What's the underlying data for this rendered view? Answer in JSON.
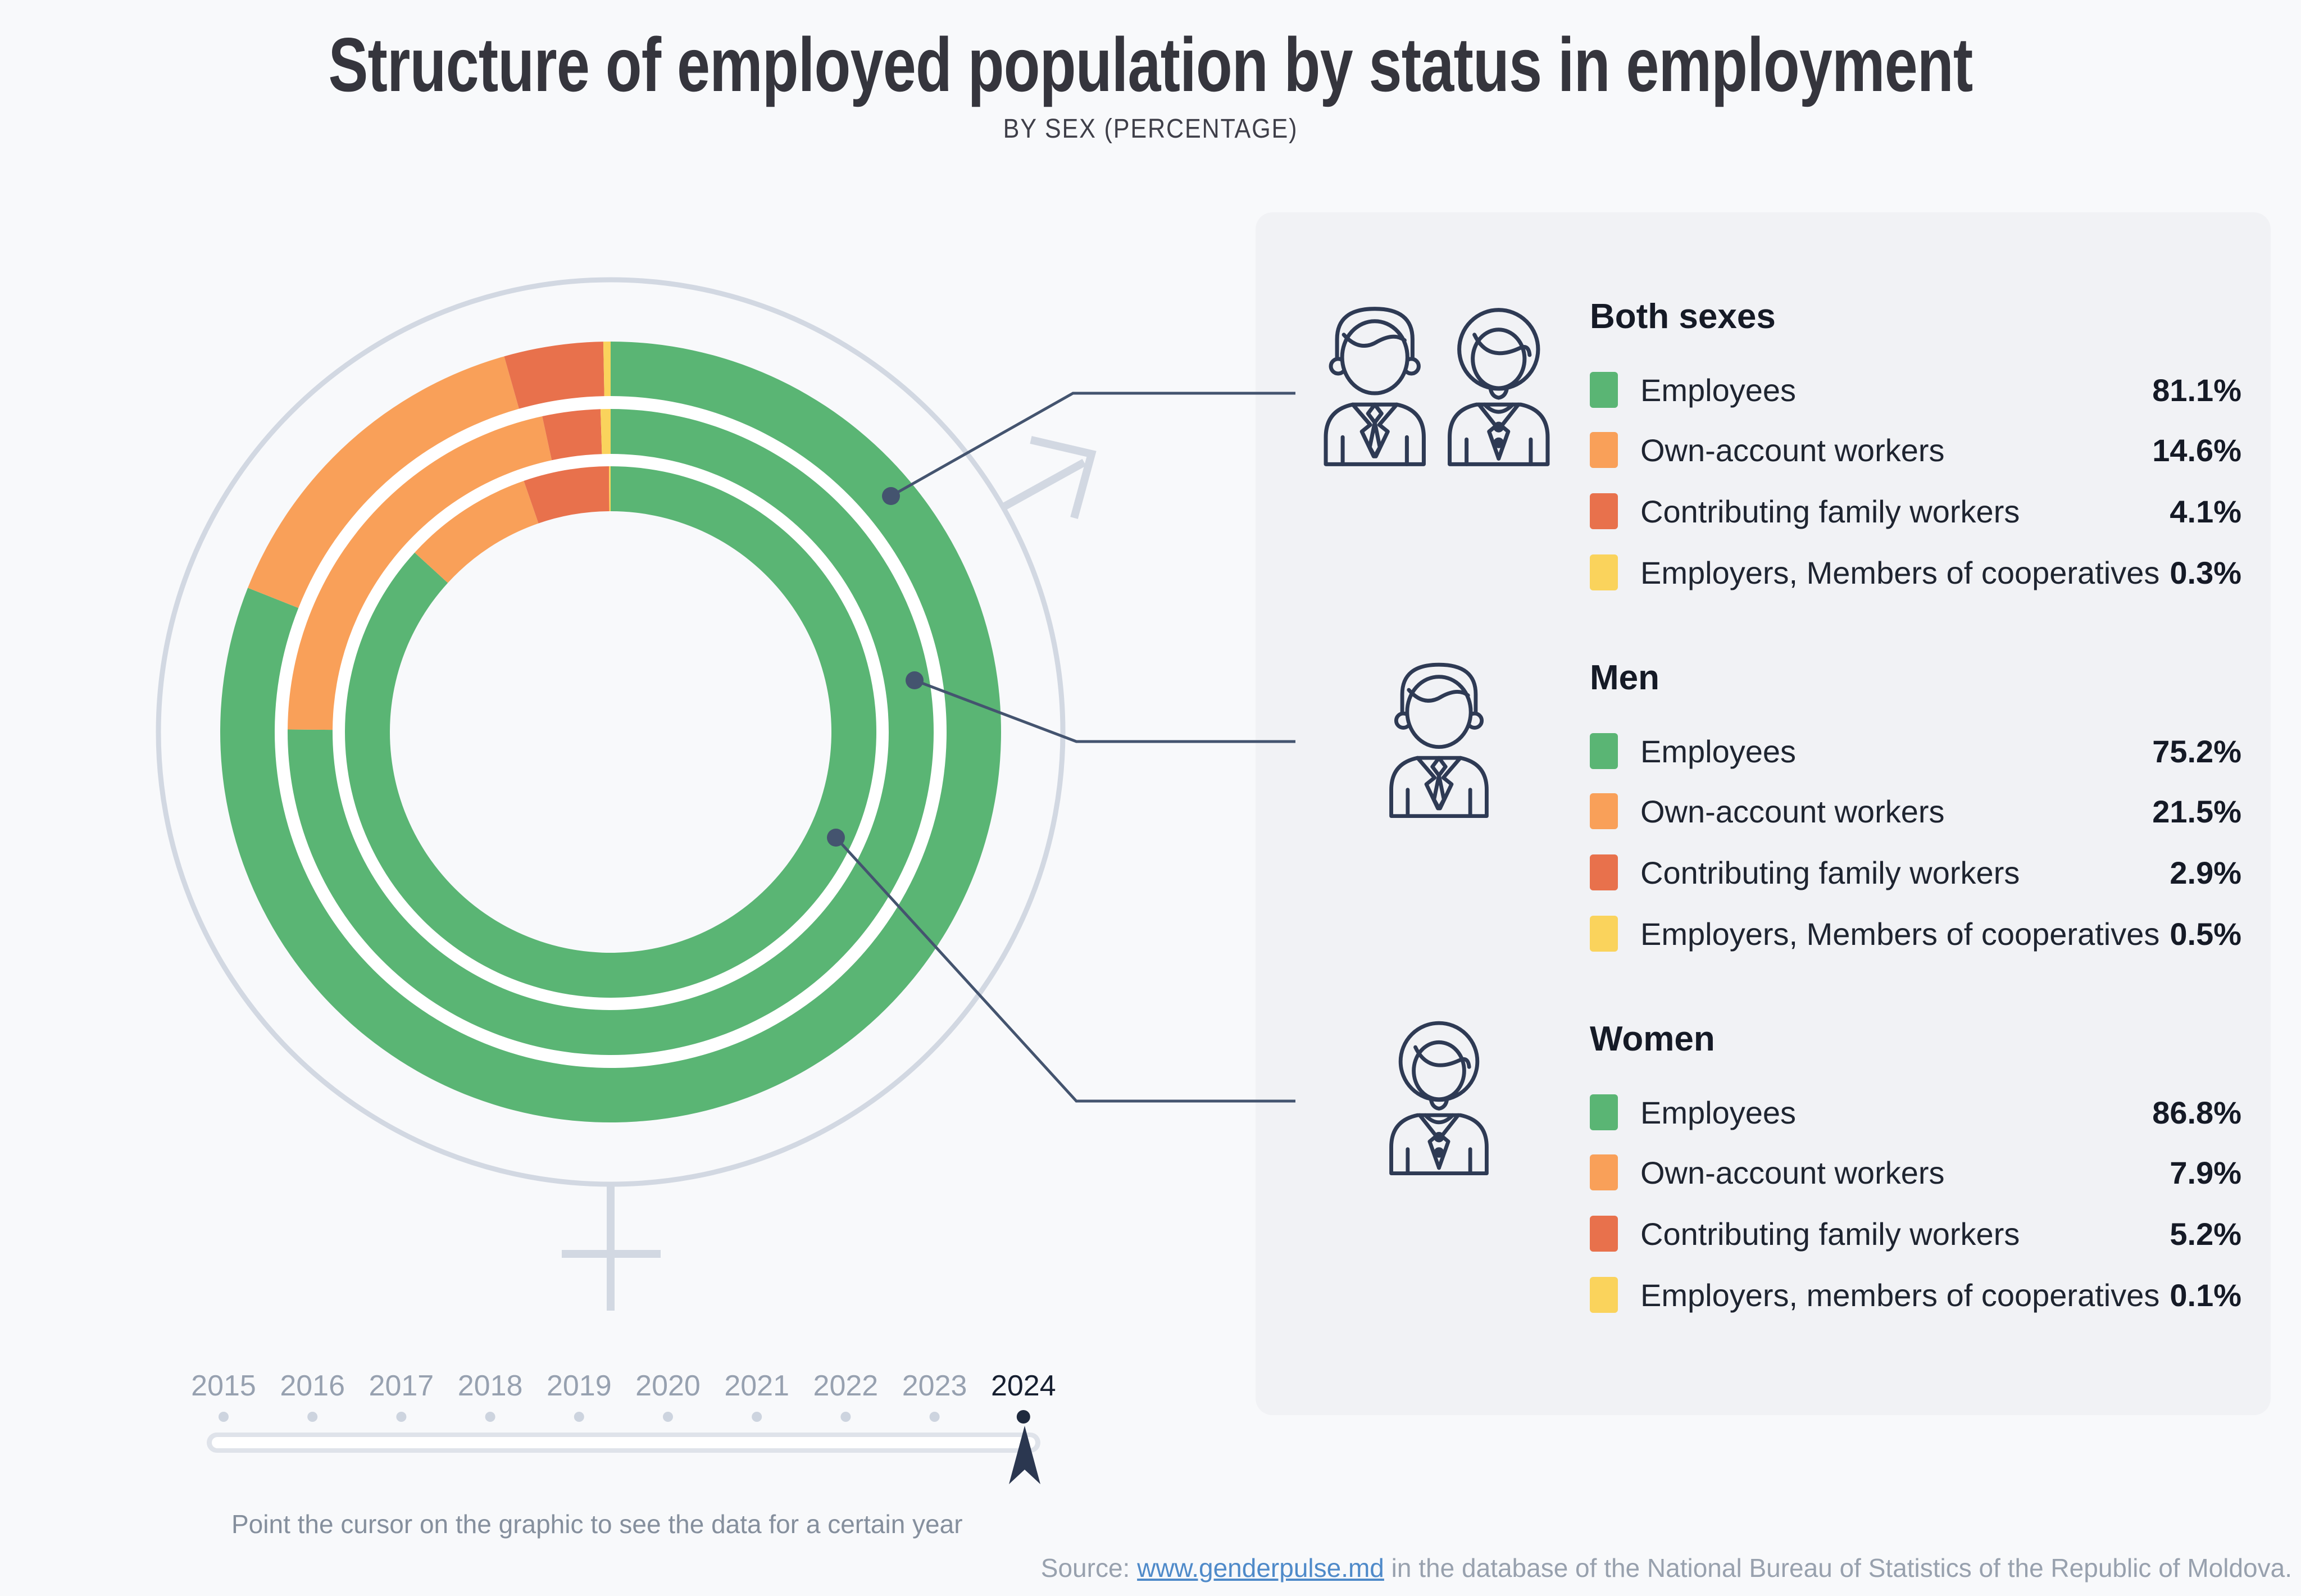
{
  "title": "Structure of employed population by status in employment",
  "subtitle": "BY SEX (PERCENTAGE)",
  "colors": {
    "employees": "#5ab574",
    "own_account": "#f9a059",
    "family_workers": "#e8714c",
    "employers": "#fad35c",
    "navy": "#2e3a54",
    "callout": "#44546f",
    "decorative": "#d2d8e2",
    "panel": "#f1f2f5"
  },
  "chart_data": {
    "type": "donut-multi-ring",
    "title": "Structure of employed population by status in employment",
    "subtitle": "BY SEX (PERCENTAGE)",
    "year": "2024",
    "rings_order_outer_to_inner": [
      "Both sexes",
      "Men",
      "Women"
    ],
    "categories": [
      "Employees",
      "Own-account workers",
      "Contributing family workers",
      "Employers, Members of cooperatives"
    ],
    "category_colors": [
      "#5ab574",
      "#f9a059",
      "#e8714c",
      "#fad35c"
    ],
    "series": [
      {
        "name": "Both sexes",
        "values": [
          81.1,
          14.6,
          4.1,
          0.3
        ]
      },
      {
        "name": "Men",
        "values": [
          75.2,
          21.5,
          2.9,
          0.5
        ]
      },
      {
        "name": "Women",
        "values": [
          86.8,
          7.9,
          5.2,
          0.1
        ]
      }
    ]
  },
  "legend": {
    "groups": [
      {
        "heading": "Both sexes",
        "icon": "both-sexes-icon",
        "rows": [
          {
            "label": "Employees",
            "value": "81.1%"
          },
          {
            "label": "Own-account workers",
            "value": "14.6%"
          },
          {
            "label": "Contributing family workers",
            "value": "4.1%"
          },
          {
            "label": "Employers, Members of cooperatives",
            "value": "0.3%"
          }
        ]
      },
      {
        "heading": "Men",
        "icon": "man-icon",
        "rows": [
          {
            "label": "Employees",
            "value": "75.2%"
          },
          {
            "label": "Own-account workers",
            "value": "21.5%"
          },
          {
            "label": "Contributing family workers",
            "value": "2.9%"
          },
          {
            "label": "Employers, Members of cooperatives",
            "value": "0.5%"
          }
        ]
      },
      {
        "heading": "Women",
        "icon": "woman-icon",
        "rows": [
          {
            "label": "Employees",
            "value": "86.8%"
          },
          {
            "label": "Own-account workers",
            "value": "7.9%"
          },
          {
            "label": "Contributing family workers",
            "value": "5.2%"
          },
          {
            "label": "Employers, members of cooperatives",
            "value": "0.1%"
          }
        ]
      }
    ]
  },
  "timeline": {
    "years": [
      "2015",
      "2016",
      "2017",
      "2018",
      "2019",
      "2020",
      "2021",
      "2022",
      "2023",
      "2024"
    ],
    "selected": "2024",
    "hint": "Point the cursor on the graphic to see the data for a certain year"
  },
  "source": {
    "prefix": "Source: ",
    "link": "www.genderpulse.md",
    "suffix": " in the database of the National Bureau of Statistics of the Republic of Moldova."
  }
}
